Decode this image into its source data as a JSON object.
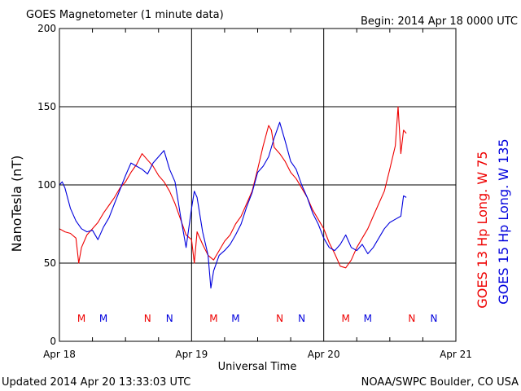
{
  "header": {
    "title": "GOES Magnetometer (1 minute data)",
    "begin": "Begin:  2014 Apr 18 0000 UTC"
  },
  "footer": {
    "updated": "Updated 2014 Apr 20 13:33:03 UTC",
    "source": "NOAA/SWPC Boulder, CO USA"
  },
  "colors": {
    "goes13": "#ee0000",
    "goes15": "#0000dd",
    "axis": "#000000"
  },
  "chart_data": {
    "type": "line",
    "title": "GOES Magnetometer (1 minute data)",
    "xlabel": "Universal Time",
    "ylabel": "NanoTesla (nT)",
    "xlim": [
      0,
      72
    ],
    "ylim": [
      0,
      200
    ],
    "grid": true,
    "x_ticks": [
      {
        "x": 0,
        "label": "Apr 18"
      },
      {
        "x": 24,
        "label": "Apr 19"
      },
      {
        "x": 48,
        "label": "Apr 20"
      },
      {
        "x": 72,
        "label": "Apr 21"
      }
    ],
    "y_ticks": [
      0,
      50,
      100,
      150,
      200
    ],
    "series": [
      {
        "name": "GOES 13 Hp  Long. W 75",
        "color": "#ee0000",
        "x": [
          0,
          1,
          2,
          3,
          3.5,
          4,
          5,
          6,
          7,
          8,
          9,
          10,
          11,
          12,
          13,
          14,
          15,
          16,
          17,
          18,
          19,
          20,
          21,
          22,
          23,
          24,
          24.5,
          25,
          26,
          27,
          28,
          29,
          30,
          31,
          32,
          33,
          34,
          35,
          36,
          37,
          38,
          38.5,
          39,
          40,
          41,
          42,
          43,
          44,
          45,
          46,
          47,
          48,
          49,
          50,
          51,
          52,
          53,
          54,
          55,
          56,
          57,
          58,
          59,
          60,
          61,
          61.5,
          62,
          62.5,
          63
        ],
        "y": [
          72,
          70,
          69,
          66,
          50,
          60,
          68,
          72,
          76,
          82,
          87,
          92,
          98,
          102,
          108,
          113,
          120,
          116,
          112,
          106,
          102,
          96,
          88,
          78,
          68,
          65,
          50,
          70,
          62,
          55,
          52,
          58,
          64,
          68,
          75,
          80,
          88,
          96,
          110,
          125,
          138,
          135,
          124,
          120,
          115,
          108,
          104,
          98,
          92,
          84,
          78,
          72,
          63,
          56,
          48,
          47,
          52,
          60,
          66,
          72,
          80,
          88,
          96,
          110,
          125,
          150,
          120,
          135,
          133
        ]
      },
      {
        "name": "GOES 15 Hp  Long. W 135",
        "color": "#0000dd",
        "x": [
          0,
          0.5,
          1,
          2,
          3,
          4,
          5,
          6,
          7,
          8,
          9,
          10,
          11,
          12,
          13,
          14,
          15,
          16,
          17,
          18,
          19,
          20,
          21,
          22,
          23,
          24,
          24.5,
          25,
          26,
          27,
          27.5,
          28,
          29,
          30,
          31,
          32,
          33,
          34,
          35,
          36,
          37,
          38,
          39,
          40,
          41,
          42,
          43,
          44,
          45,
          46,
          47,
          48,
          49,
          50,
          51,
          52,
          53,
          54,
          55,
          56,
          57,
          58,
          59,
          60,
          61,
          62,
          62.5,
          63
        ],
        "y": [
          100,
          102,
          98,
          85,
          77,
          72,
          70,
          71,
          65,
          73,
          79,
          88,
          97,
          106,
          114,
          112,
          110,
          107,
          114,
          118,
          122,
          110,
          102,
          80,
          60,
          85,
          96,
          92,
          70,
          55,
          34,
          45,
          55,
          58,
          62,
          68,
          75,
          86,
          95,
          108,
          112,
          118,
          130,
          140,
          128,
          115,
          110,
          100,
          92,
          82,
          75,
          66,
          60,
          58,
          62,
          68,
          60,
          58,
          62,
          56,
          60,
          66,
          72,
          76,
          78,
          80,
          93,
          92
        ]
      }
    ],
    "markers": [
      {
        "x": 4,
        "label": "M",
        "color": "#ee0000"
      },
      {
        "x": 8,
        "label": "M",
        "color": "#0000dd"
      },
      {
        "x": 16,
        "label": "N",
        "color": "#ee0000"
      },
      {
        "x": 20,
        "label": "N",
        "color": "#0000dd"
      },
      {
        "x": 28,
        "label": "M",
        "color": "#ee0000"
      },
      {
        "x": 32,
        "label": "M",
        "color": "#0000dd"
      },
      {
        "x": 40,
        "label": "N",
        "color": "#ee0000"
      },
      {
        "x": 44,
        "label": "N",
        "color": "#0000dd"
      },
      {
        "x": 52,
        "label": "M",
        "color": "#ee0000"
      },
      {
        "x": 56,
        "label": "M",
        "color": "#0000dd"
      },
      {
        "x": 64,
        "label": "N",
        "color": "#ee0000"
      },
      {
        "x": 68,
        "label": "N",
        "color": "#0000dd"
      }
    ]
  }
}
